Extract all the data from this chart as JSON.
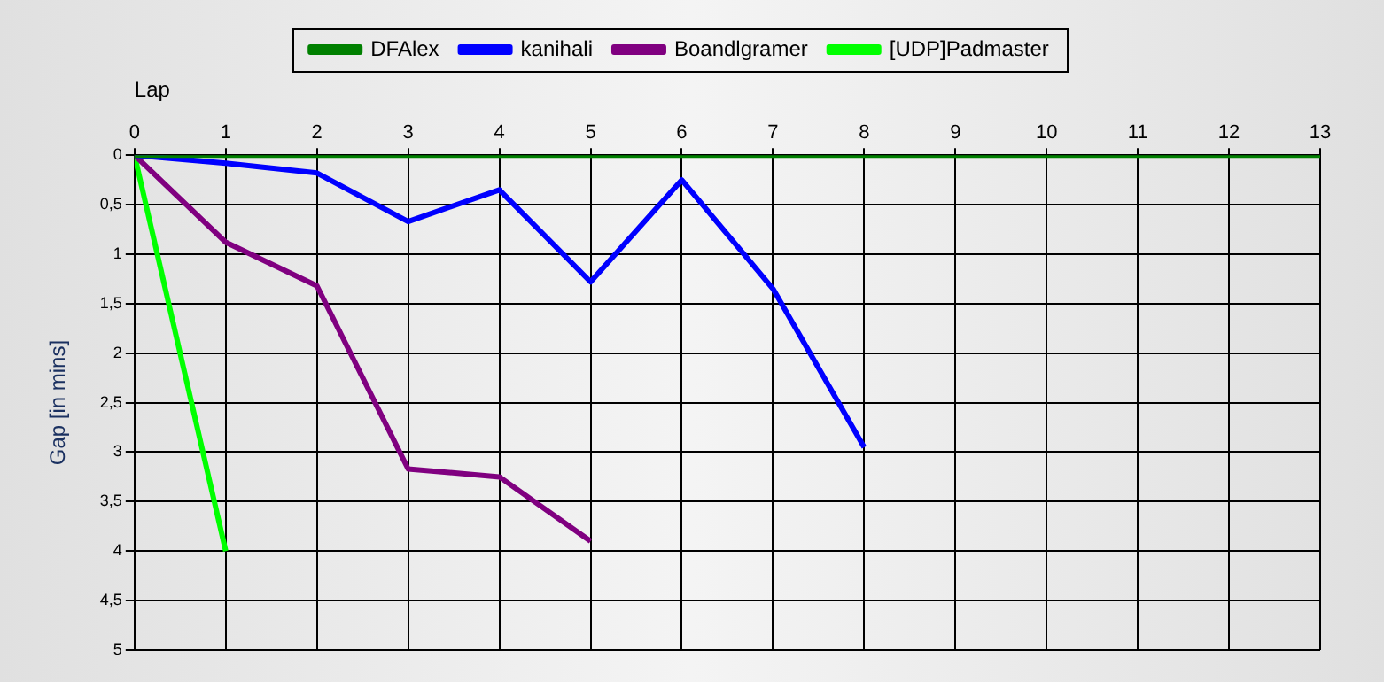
{
  "chart_data": {
    "type": "line",
    "xlabel": "Lap",
    "ylabel": "Gap [in mins]",
    "xlim": [
      0,
      13
    ],
    "xticks": [
      0,
      1,
      2,
      3,
      4,
      5,
      6,
      7,
      8,
      9,
      10,
      11,
      12,
      13
    ],
    "ylim": [
      5,
      0
    ],
    "yticks": [
      0,
      {
        "value": 0.5,
        "label": "0,5"
      },
      1,
      {
        "value": 1.5,
        "label": "1,5"
      },
      2,
      {
        "value": 2.5,
        "label": "2,5"
      },
      3,
      {
        "value": 3.5,
        "label": "3,5"
      },
      4,
      {
        "value": 4.5,
        "label": "4,5"
      },
      5
    ],
    "grid": true,
    "legend": "top",
    "marker": "none",
    "line_style": "solid",
    "series": [
      {
        "name": "DFAlex",
        "color": "#008000",
        "x": [
          0,
          1,
          2,
          3,
          4,
          5,
          6,
          7,
          8,
          9,
          10,
          11,
          12,
          13
        ],
        "values": [
          0,
          0,
          0,
          0,
          0,
          0,
          0,
          0,
          0,
          0,
          0,
          0,
          0,
          0
        ]
      },
      {
        "name": "kanihali",
        "color": "#0000ff",
        "x": [
          0,
          1,
          2,
          3,
          4,
          5,
          6,
          7,
          8
        ],
        "values": [
          0,
          0.08,
          0.18,
          0.67,
          0.35,
          1.28,
          0.25,
          1.35,
          2.95
        ]
      },
      {
        "name": "Boandlgramer",
        "color": "#800080",
        "x": [
          0,
          1,
          2,
          3,
          4,
          5
        ],
        "values": [
          0,
          0.88,
          1.32,
          3.17,
          3.25,
          3.9
        ]
      },
      {
        "name": "[UDP]Padmaster",
        "color": "#00ff00",
        "x": [
          0,
          1
        ],
        "values": [
          0,
          4.0
        ]
      }
    ]
  }
}
